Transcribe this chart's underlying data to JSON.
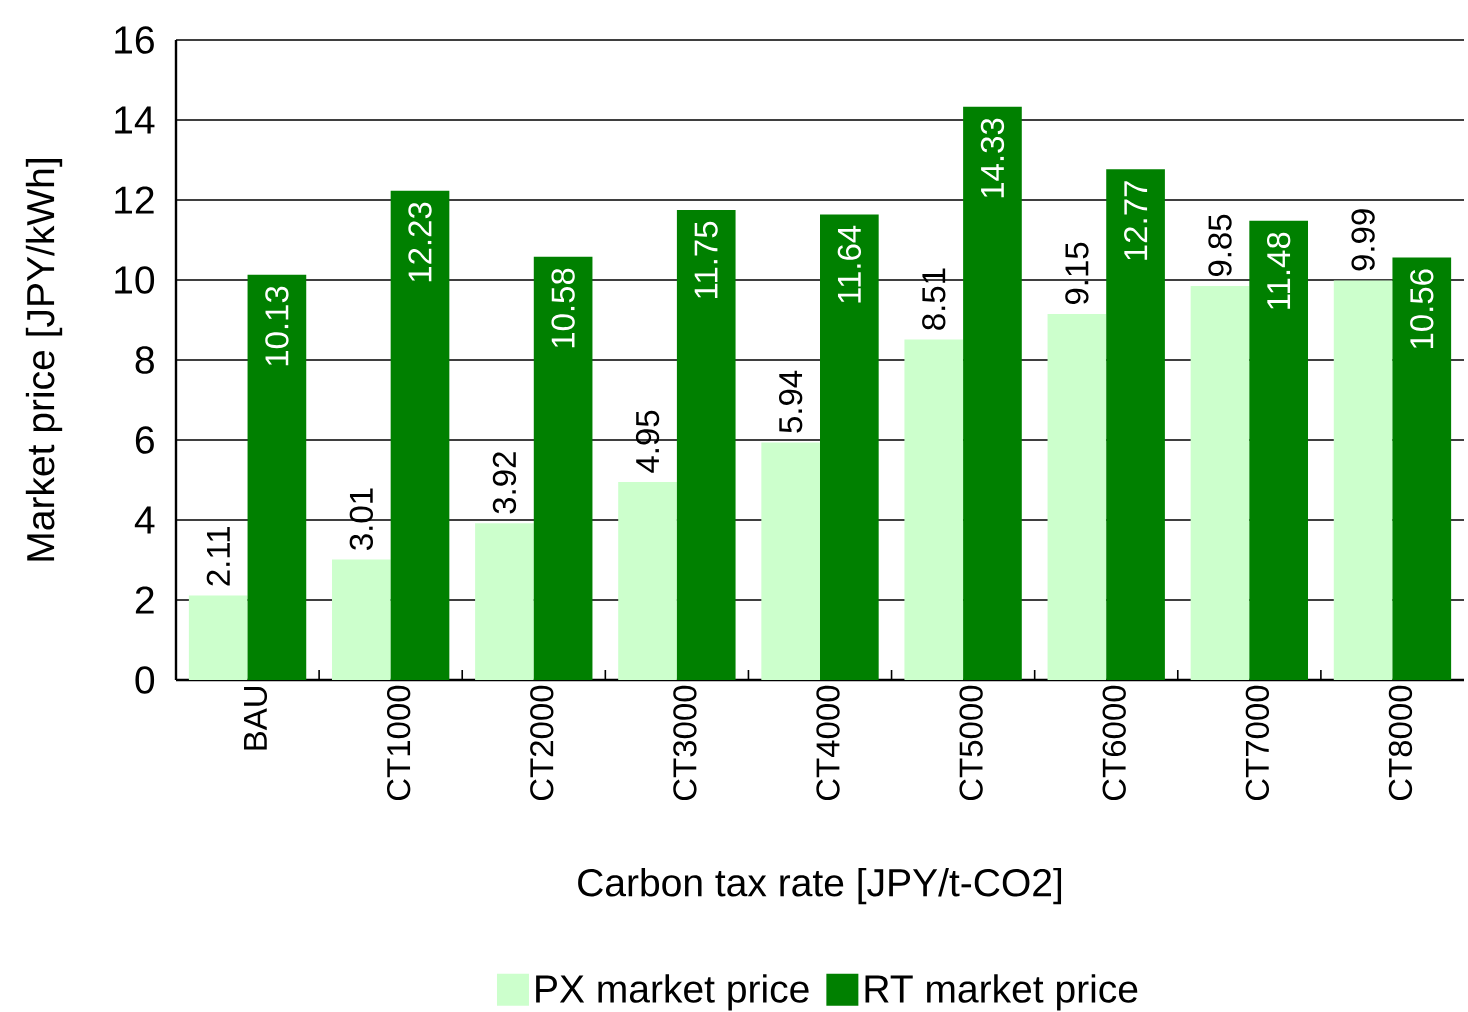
{
  "chart_data": {
    "type": "bar",
    "xlabel": "Carbon tax rate [JPY/t-CO2]",
    "ylabel": "Market price [JPY/kWh]",
    "categories": [
      "BAU",
      "CT1000",
      "CT2000",
      "CT3000",
      "CT4000",
      "CT5000",
      "CT6000",
      "CT7000",
      "CT8000"
    ],
    "series": [
      {
        "name": "PX market price",
        "color": "#ccffcc",
        "values": [
          2.11,
          3.01,
          3.92,
          4.95,
          5.94,
          8.51,
          9.15,
          9.85,
          9.99
        ]
      },
      {
        "name": "RT market price",
        "color": "#008000",
        "values": [
          10.13,
          12.23,
          10.58,
          11.75,
          11.64,
          14.33,
          12.77,
          11.48,
          10.56
        ]
      }
    ],
    "ylim": [
      0,
      16
    ],
    "yticks": [
      0,
      2,
      4,
      6,
      8,
      10,
      12,
      14,
      16
    ],
    "grid": "y",
    "legend": "bottom",
    "data_labels": true
  }
}
